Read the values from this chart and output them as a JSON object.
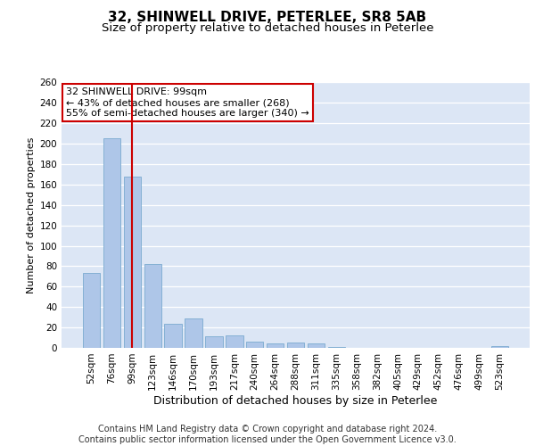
{
  "title1": "32, SHINWELL DRIVE, PETERLEE, SR8 5AB",
  "title2": "Size of property relative to detached houses in Peterlee",
  "xlabel": "Distribution of detached houses by size in Peterlee",
  "ylabel": "Number of detached properties",
  "categories": [
    "52sqm",
    "76sqm",
    "99sqm",
    "123sqm",
    "146sqm",
    "170sqm",
    "193sqm",
    "217sqm",
    "240sqm",
    "264sqm",
    "288sqm",
    "311sqm",
    "335sqm",
    "358sqm",
    "382sqm",
    "405sqm",
    "429sqm",
    "452sqm",
    "476sqm",
    "499sqm",
    "523sqm"
  ],
  "values": [
    73,
    205,
    168,
    82,
    24,
    29,
    11,
    12,
    6,
    4,
    5,
    4,
    1,
    0,
    0,
    0,
    0,
    0,
    0,
    0,
    2
  ],
  "highlight_index": 2,
  "bar_color": "#aec6e8",
  "bar_edge_color": "#7aaad0",
  "highlight_line_color": "#cc0000",
  "annotation_text": "32 SHINWELL DRIVE: 99sqm\n← 43% of detached houses are smaller (268)\n55% of semi-detached houses are larger (340) →",
  "annotation_box_color": "#ffffff",
  "annotation_box_edge": "#cc0000",
  "ylim": [
    0,
    260
  ],
  "yticks": [
    0,
    20,
    40,
    60,
    80,
    100,
    120,
    140,
    160,
    180,
    200,
    220,
    240,
    260
  ],
  "bg_color": "#dce6f5",
  "footer_text": "Contains HM Land Registry data © Crown copyright and database right 2024.\nContains public sector information licensed under the Open Government Licence v3.0.",
  "title1_fontsize": 11,
  "title2_fontsize": 9.5,
  "xlabel_fontsize": 9,
  "ylabel_fontsize": 8,
  "tick_fontsize": 7.5,
  "annotation_fontsize": 8,
  "footer_fontsize": 7
}
